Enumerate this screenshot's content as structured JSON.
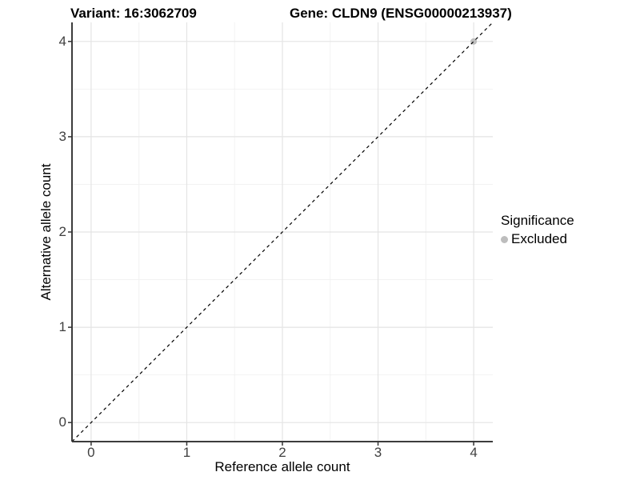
{
  "chart_data": {
    "type": "scatter",
    "title_left": "Variant: 16:3062709",
    "title_right": "Gene: CLDN9 (ENSG00000213937)",
    "xlabel": "Reference allele count",
    "ylabel": "Alternative allele count",
    "xlim": [
      -0.2,
      4.2
    ],
    "ylim": [
      -0.2,
      4.2
    ],
    "x_ticks": [
      0,
      1,
      2,
      3,
      4
    ],
    "y_ticks": [
      0,
      1,
      2,
      3,
      4
    ],
    "x_minor_ticks": [
      0.5,
      1.5,
      2.5,
      3.5
    ],
    "y_minor_ticks": [
      0.5,
      1.5,
      2.5,
      3.5
    ],
    "grid": "major and minor, light gray on white panel",
    "series": [
      {
        "name": "Excluded",
        "color": "#bdbdbd",
        "points": [
          {
            "x": 4,
            "y": 4
          }
        ]
      }
    ],
    "reference_line": {
      "type": "identity (y = x)",
      "style": "dashed",
      "color": "#000000",
      "from": [
        -0.2,
        -0.2
      ],
      "to": [
        4.2,
        4.2
      ]
    },
    "legend": {
      "title": "Significance",
      "position": "right",
      "items": [
        {
          "label": "Excluded",
          "color": "#bdbdbd"
        }
      ]
    }
  },
  "colors": {
    "background": "#ffffff",
    "grid_major": "#e4e4e4",
    "grid_minor": "#f2f2f2",
    "axis_line": "#3c3c3c",
    "tick_mark": "#333333",
    "tick_label": "#404040",
    "text": "#000000",
    "excluded_point": "#bdbdbd"
  }
}
